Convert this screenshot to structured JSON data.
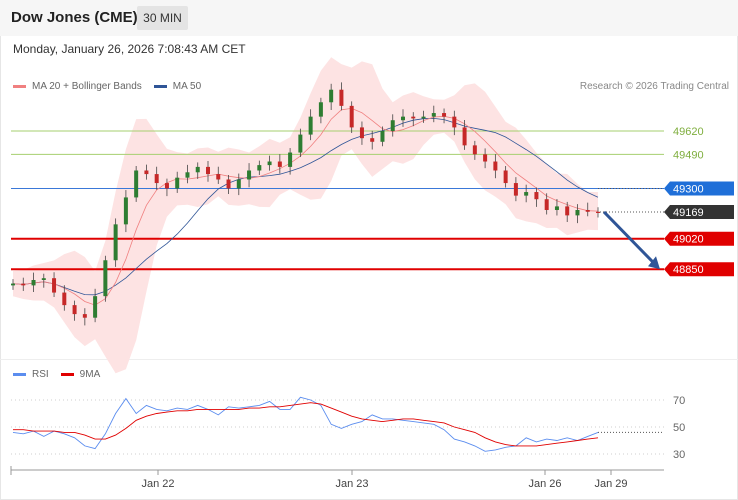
{
  "header": {
    "title": "Dow Jones (CME)",
    "timeframe": "30 MIN"
  },
  "datetime": "Monday, January 26, 2026 7:08:43 AM CET",
  "legend_main": [
    {
      "label": "MA 20 + Bollinger Bands",
      "color": "#f08080"
    },
    {
      "label": "MA 50",
      "color": "#2f5597"
    }
  ],
  "credit": "Research © 2026 Trading Central",
  "legend_rsi": [
    {
      "label": "RSI",
      "color": "#5b8def"
    },
    {
      "label": "9MA",
      "color": "#e00000"
    }
  ],
  "chart_data": [
    {
      "type": "candlestick",
      "title": "",
      "y_range": [
        48490,
        49940
      ],
      "x_tick_labels": [
        "Jan 22",
        "Jan 23",
        "Jan 26",
        "Jan 29"
      ],
      "current_price": {
        "label": "49169",
        "value": 49169,
        "color": "#333333"
      },
      "levels": [
        {
          "label": "49620",
          "value": 49620,
          "color": "#a6cf6f",
          "kind": "target"
        },
        {
          "label": "49490",
          "value": 49490,
          "color": "#a6cf6f",
          "kind": "target"
        },
        {
          "label": "49300",
          "value": 49300,
          "color": "#3a78d8",
          "kind": "pivot"
        },
        {
          "label": "49020",
          "value": 49020,
          "color": "#e00000",
          "kind": "support"
        },
        {
          "label": "48850",
          "value": 48850,
          "color": "#e00000",
          "kind": "support"
        }
      ],
      "forecast_arrow": {
        "from": 49169,
        "to": 48850,
        "color": "#2f5597"
      },
      "close_path": [
        48770,
        48760,
        48790,
        48800,
        48720,
        48650,
        48600,
        48580,
        48700,
        48900,
        49100,
        49250,
        49400,
        49380,
        49330,
        49300,
        49360,
        49390,
        49420,
        49380,
        49350,
        49300,
        49350,
        49400,
        49430,
        49450,
        49420,
        49500,
        49600,
        49700,
        49780,
        49850,
        49760,
        49640,
        49580,
        49560,
        49620,
        49680,
        49700,
        49690,
        49700,
        49720,
        49700,
        49640,
        49540,
        49490,
        49450,
        49400,
        49330,
        49260,
        49280,
        49240,
        49180,
        49200,
        49150,
        49180,
        49170,
        49169
      ]
    },
    {
      "type": "line",
      "title": "RSI",
      "y_ticks": [
        "70",
        "50",
        "30"
      ],
      "y_range": [
        20,
        80
      ],
      "series": [
        {
          "name": "RSI",
          "color": "#5b8def",
          "values": [
            46,
            45,
            47,
            43,
            47,
            45,
            42,
            36,
            34,
            45,
            60,
            71,
            60,
            66,
            63,
            62,
            64,
            63,
            66,
            63,
            59,
            65,
            64,
            65,
            66,
            69,
            63,
            63,
            72,
            70,
            66,
            52,
            49,
            52,
            54,
            59,
            56,
            56,
            55,
            54,
            53,
            52,
            48,
            41,
            39,
            36,
            32,
            33,
            35,
            36,
            42,
            39,
            41,
            40,
            42,
            40,
            43,
            46
          ]
        },
        {
          "name": "9MA",
          "color": "#e00000",
          "values": [
            48,
            48,
            47,
            47,
            47,
            46,
            46,
            44,
            41,
            41,
            44,
            49,
            55,
            58,
            60,
            61,
            62,
            62,
            63,
            63,
            63,
            63,
            63,
            64,
            64,
            65,
            65,
            66,
            67,
            68,
            67,
            64,
            61,
            58,
            56,
            55,
            54,
            55,
            56,
            56,
            55,
            54,
            53,
            50,
            48,
            46,
            42,
            39,
            37,
            36,
            36,
            36,
            37,
            38,
            39,
            40,
            41,
            42
          ]
        }
      ]
    }
  ]
}
